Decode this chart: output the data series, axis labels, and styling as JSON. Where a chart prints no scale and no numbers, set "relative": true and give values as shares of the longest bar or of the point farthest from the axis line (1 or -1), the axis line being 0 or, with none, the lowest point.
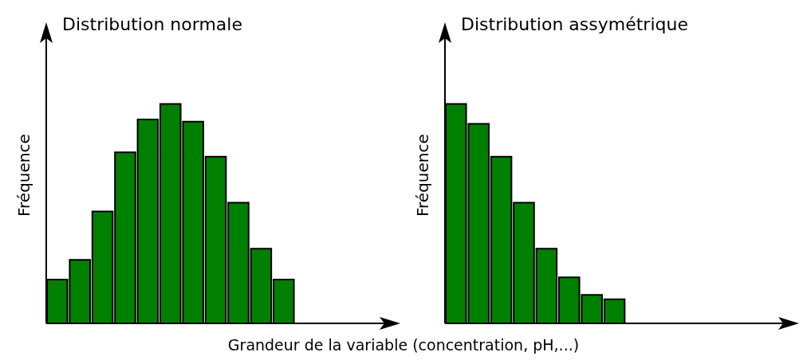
{
  "chart_data": [
    {
      "type": "bar",
      "title": "Distribution normale",
      "ylabel": "Fréquence",
      "xlabel": "Grandeur de la variable (concentration, pH,...)",
      "relative": true,
      "color": "#008000",
      "categories": [
        null,
        null,
        null,
        null,
        null,
        null,
        null,
        null,
        null,
        null,
        null
      ],
      "values": [
        0.2,
        0.29,
        0.51,
        0.78,
        0.93,
        1,
        0.92,
        0.76,
        0.55,
        0.34,
        0.2
      ]
    },
    {
      "type": "bar",
      "title": "Distribution assymétrique",
      "ylabel": "Fréquence",
      "relative": true,
      "color": "#008000",
      "categories": [
        null,
        null,
        null,
        null,
        null,
        null,
        null,
        null
      ],
      "values": [
        1,
        0.91,
        0.76,
        0.55,
        0.34,
        0.21,
        0.13,
        0.11
      ]
    }
  ]
}
